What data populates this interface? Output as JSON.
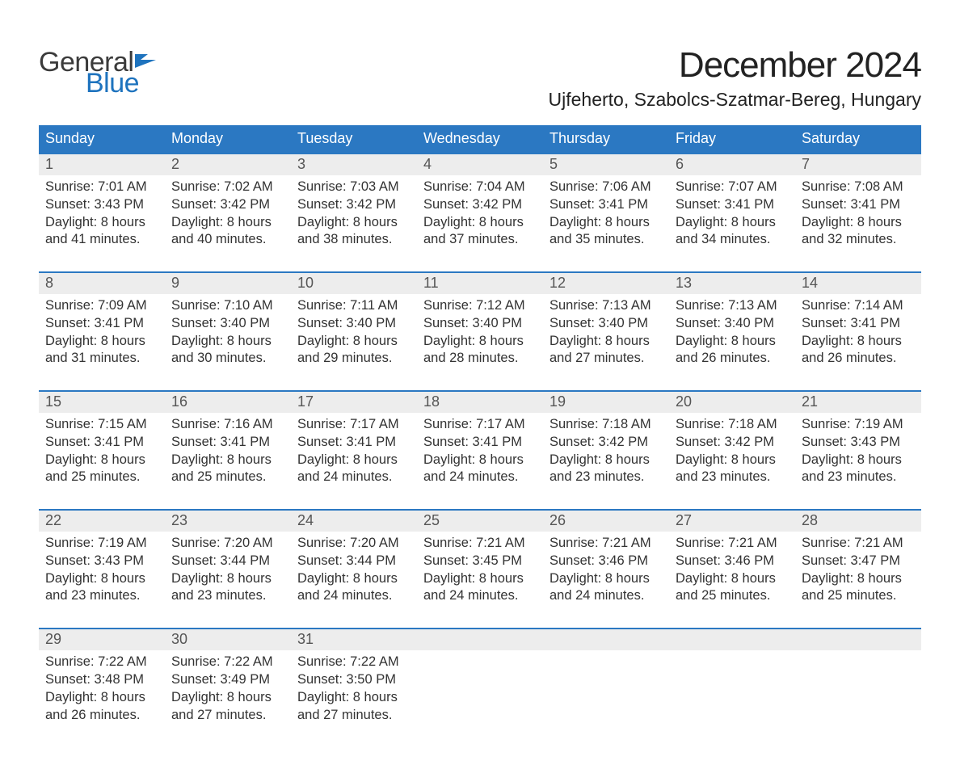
{
  "logo": {
    "line1": "General",
    "line2": "Blue",
    "flag_color": "#1e73be"
  },
  "title": "December 2024",
  "location": "Ujfeherto, Szabolcs-Szatmar-Bereg, Hungary",
  "colors": {
    "accent": "#2b78c2",
    "header_bg": "#2b78c2",
    "header_text": "#ffffff",
    "daynum_bg": "#ededed",
    "text": "#333333",
    "daynum_text": "#555555",
    "logo_blue": "#1e73be",
    "page_bg": "#ffffff"
  },
  "weekdays": [
    "Sunday",
    "Monday",
    "Tuesday",
    "Wednesday",
    "Thursday",
    "Friday",
    "Saturday"
  ],
  "weeks": [
    [
      {
        "n": "1",
        "sunrise": "Sunrise: 7:01 AM",
        "sunset": "Sunset: 3:43 PM",
        "day1": "Daylight: 8 hours",
        "day2": "and 41 minutes."
      },
      {
        "n": "2",
        "sunrise": "Sunrise: 7:02 AM",
        "sunset": "Sunset: 3:42 PM",
        "day1": "Daylight: 8 hours",
        "day2": "and 40 minutes."
      },
      {
        "n": "3",
        "sunrise": "Sunrise: 7:03 AM",
        "sunset": "Sunset: 3:42 PM",
        "day1": "Daylight: 8 hours",
        "day2": "and 38 minutes."
      },
      {
        "n": "4",
        "sunrise": "Sunrise: 7:04 AM",
        "sunset": "Sunset: 3:42 PM",
        "day1": "Daylight: 8 hours",
        "day2": "and 37 minutes."
      },
      {
        "n": "5",
        "sunrise": "Sunrise: 7:06 AM",
        "sunset": "Sunset: 3:41 PM",
        "day1": "Daylight: 8 hours",
        "day2": "and 35 minutes."
      },
      {
        "n": "6",
        "sunrise": "Sunrise: 7:07 AM",
        "sunset": "Sunset: 3:41 PM",
        "day1": "Daylight: 8 hours",
        "day2": "and 34 minutes."
      },
      {
        "n": "7",
        "sunrise": "Sunrise: 7:08 AM",
        "sunset": "Sunset: 3:41 PM",
        "day1": "Daylight: 8 hours",
        "day2": "and 32 minutes."
      }
    ],
    [
      {
        "n": "8",
        "sunrise": "Sunrise: 7:09 AM",
        "sunset": "Sunset: 3:41 PM",
        "day1": "Daylight: 8 hours",
        "day2": "and 31 minutes."
      },
      {
        "n": "9",
        "sunrise": "Sunrise: 7:10 AM",
        "sunset": "Sunset: 3:40 PM",
        "day1": "Daylight: 8 hours",
        "day2": "and 30 minutes."
      },
      {
        "n": "10",
        "sunrise": "Sunrise: 7:11 AM",
        "sunset": "Sunset: 3:40 PM",
        "day1": "Daylight: 8 hours",
        "day2": "and 29 minutes."
      },
      {
        "n": "11",
        "sunrise": "Sunrise: 7:12 AM",
        "sunset": "Sunset: 3:40 PM",
        "day1": "Daylight: 8 hours",
        "day2": "and 28 minutes."
      },
      {
        "n": "12",
        "sunrise": "Sunrise: 7:13 AM",
        "sunset": "Sunset: 3:40 PM",
        "day1": "Daylight: 8 hours",
        "day2": "and 27 minutes."
      },
      {
        "n": "13",
        "sunrise": "Sunrise: 7:13 AM",
        "sunset": "Sunset: 3:40 PM",
        "day1": "Daylight: 8 hours",
        "day2": "and 26 minutes."
      },
      {
        "n": "14",
        "sunrise": "Sunrise: 7:14 AM",
        "sunset": "Sunset: 3:41 PM",
        "day1": "Daylight: 8 hours",
        "day2": "and 26 minutes."
      }
    ],
    [
      {
        "n": "15",
        "sunrise": "Sunrise: 7:15 AM",
        "sunset": "Sunset: 3:41 PM",
        "day1": "Daylight: 8 hours",
        "day2": "and 25 minutes."
      },
      {
        "n": "16",
        "sunrise": "Sunrise: 7:16 AM",
        "sunset": "Sunset: 3:41 PM",
        "day1": "Daylight: 8 hours",
        "day2": "and 25 minutes."
      },
      {
        "n": "17",
        "sunrise": "Sunrise: 7:17 AM",
        "sunset": "Sunset: 3:41 PM",
        "day1": "Daylight: 8 hours",
        "day2": "and 24 minutes."
      },
      {
        "n": "18",
        "sunrise": "Sunrise: 7:17 AM",
        "sunset": "Sunset: 3:41 PM",
        "day1": "Daylight: 8 hours",
        "day2": "and 24 minutes."
      },
      {
        "n": "19",
        "sunrise": "Sunrise: 7:18 AM",
        "sunset": "Sunset: 3:42 PM",
        "day1": "Daylight: 8 hours",
        "day2": "and 23 minutes."
      },
      {
        "n": "20",
        "sunrise": "Sunrise: 7:18 AM",
        "sunset": "Sunset: 3:42 PM",
        "day1": "Daylight: 8 hours",
        "day2": "and 23 minutes."
      },
      {
        "n": "21",
        "sunrise": "Sunrise: 7:19 AM",
        "sunset": "Sunset: 3:43 PM",
        "day1": "Daylight: 8 hours",
        "day2": "and 23 minutes."
      }
    ],
    [
      {
        "n": "22",
        "sunrise": "Sunrise: 7:19 AM",
        "sunset": "Sunset: 3:43 PM",
        "day1": "Daylight: 8 hours",
        "day2": "and 23 minutes."
      },
      {
        "n": "23",
        "sunrise": "Sunrise: 7:20 AM",
        "sunset": "Sunset: 3:44 PM",
        "day1": "Daylight: 8 hours",
        "day2": "and 23 minutes."
      },
      {
        "n": "24",
        "sunrise": "Sunrise: 7:20 AM",
        "sunset": "Sunset: 3:44 PM",
        "day1": "Daylight: 8 hours",
        "day2": "and 24 minutes."
      },
      {
        "n": "25",
        "sunrise": "Sunrise: 7:21 AM",
        "sunset": "Sunset: 3:45 PM",
        "day1": "Daylight: 8 hours",
        "day2": "and 24 minutes."
      },
      {
        "n": "26",
        "sunrise": "Sunrise: 7:21 AM",
        "sunset": "Sunset: 3:46 PM",
        "day1": "Daylight: 8 hours",
        "day2": "and 24 minutes."
      },
      {
        "n": "27",
        "sunrise": "Sunrise: 7:21 AM",
        "sunset": "Sunset: 3:46 PM",
        "day1": "Daylight: 8 hours",
        "day2": "and 25 minutes."
      },
      {
        "n": "28",
        "sunrise": "Sunrise: 7:21 AM",
        "sunset": "Sunset: 3:47 PM",
        "day1": "Daylight: 8 hours",
        "day2": "and 25 minutes."
      }
    ],
    [
      {
        "n": "29",
        "sunrise": "Sunrise: 7:22 AM",
        "sunset": "Sunset: 3:48 PM",
        "day1": "Daylight: 8 hours",
        "day2": "and 26 minutes."
      },
      {
        "n": "30",
        "sunrise": "Sunrise: 7:22 AM",
        "sunset": "Sunset: 3:49 PM",
        "day1": "Daylight: 8 hours",
        "day2": "and 27 minutes."
      },
      {
        "n": "31",
        "sunrise": "Sunrise: 7:22 AM",
        "sunset": "Sunset: 3:50 PM",
        "day1": "Daylight: 8 hours",
        "day2": "and 27 minutes."
      },
      null,
      null,
      null,
      null
    ]
  ]
}
